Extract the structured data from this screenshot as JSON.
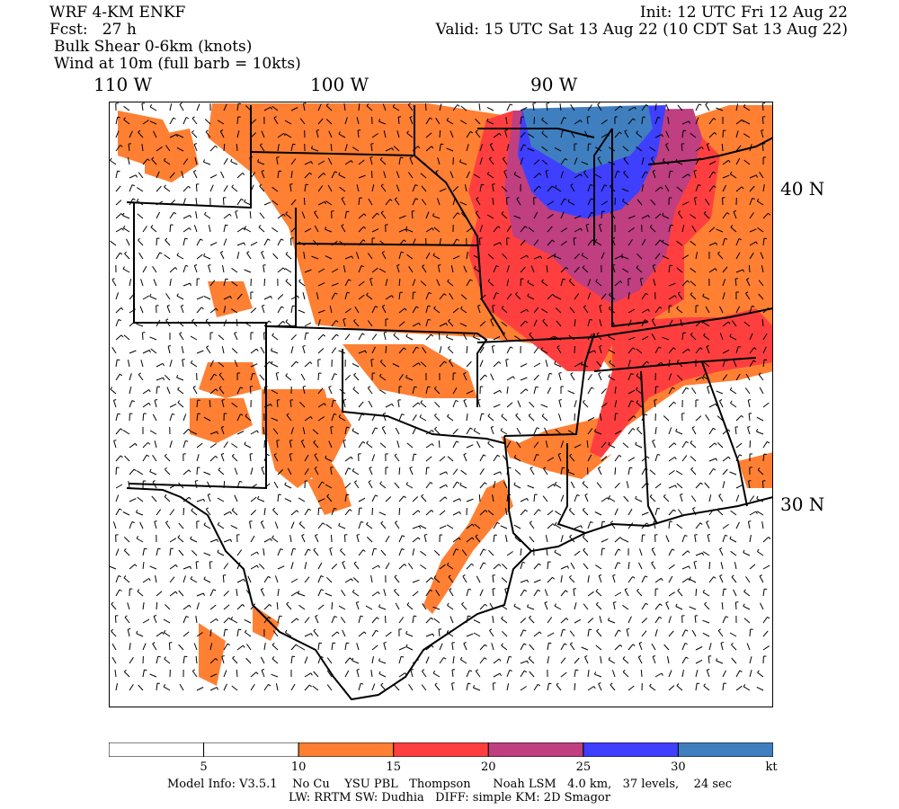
{
  "header": {
    "model": "WRF 4-KM ENKF",
    "init": "Init: 12 UTC Fri 12 Aug 22",
    "fcst": "Fcst:   27 h",
    "valid": "Valid: 15 UTC Sat 13 Aug 22 (10 CDT Sat 13 Aug 22)",
    "field1": "Bulk Shear 0-6km (knots)",
    "field2": "Wind at 10m (full barb = 10kts)"
  },
  "axes": {
    "lon_labels": [
      "110 W",
      "100 W",
      "90 W"
    ],
    "lat_labels": [
      "40 N",
      "30 N"
    ]
  },
  "colorbar": {
    "colors": [
      "#ffffff",
      "#ffffff",
      "#ff7f33",
      "#ff3f3f",
      "#bf3f80",
      "#3f3fff",
      "#3f7fbf"
    ],
    "ticks": [
      "5",
      "10",
      "15",
      "20",
      "25",
      "30"
    ],
    "unit": "kt"
  },
  "legend_colors": {
    "land": "#ffffff",
    "orange": "#ff7f33",
    "red": "#ff3f3f",
    "purple": "#bf3f80",
    "blue": "#3f3fff",
    "steel": "#3f7fbf"
  },
  "footer": {
    "line1": "Model Info: V3.5.1    No Cu    YSU PBL   Thompson      Noah LSM   4.0 km,   37 levels,    24 sec",
    "line2": "LW: RRTM SW: Dudhia   DIFF: simple KM: 2D Smagor"
  }
}
